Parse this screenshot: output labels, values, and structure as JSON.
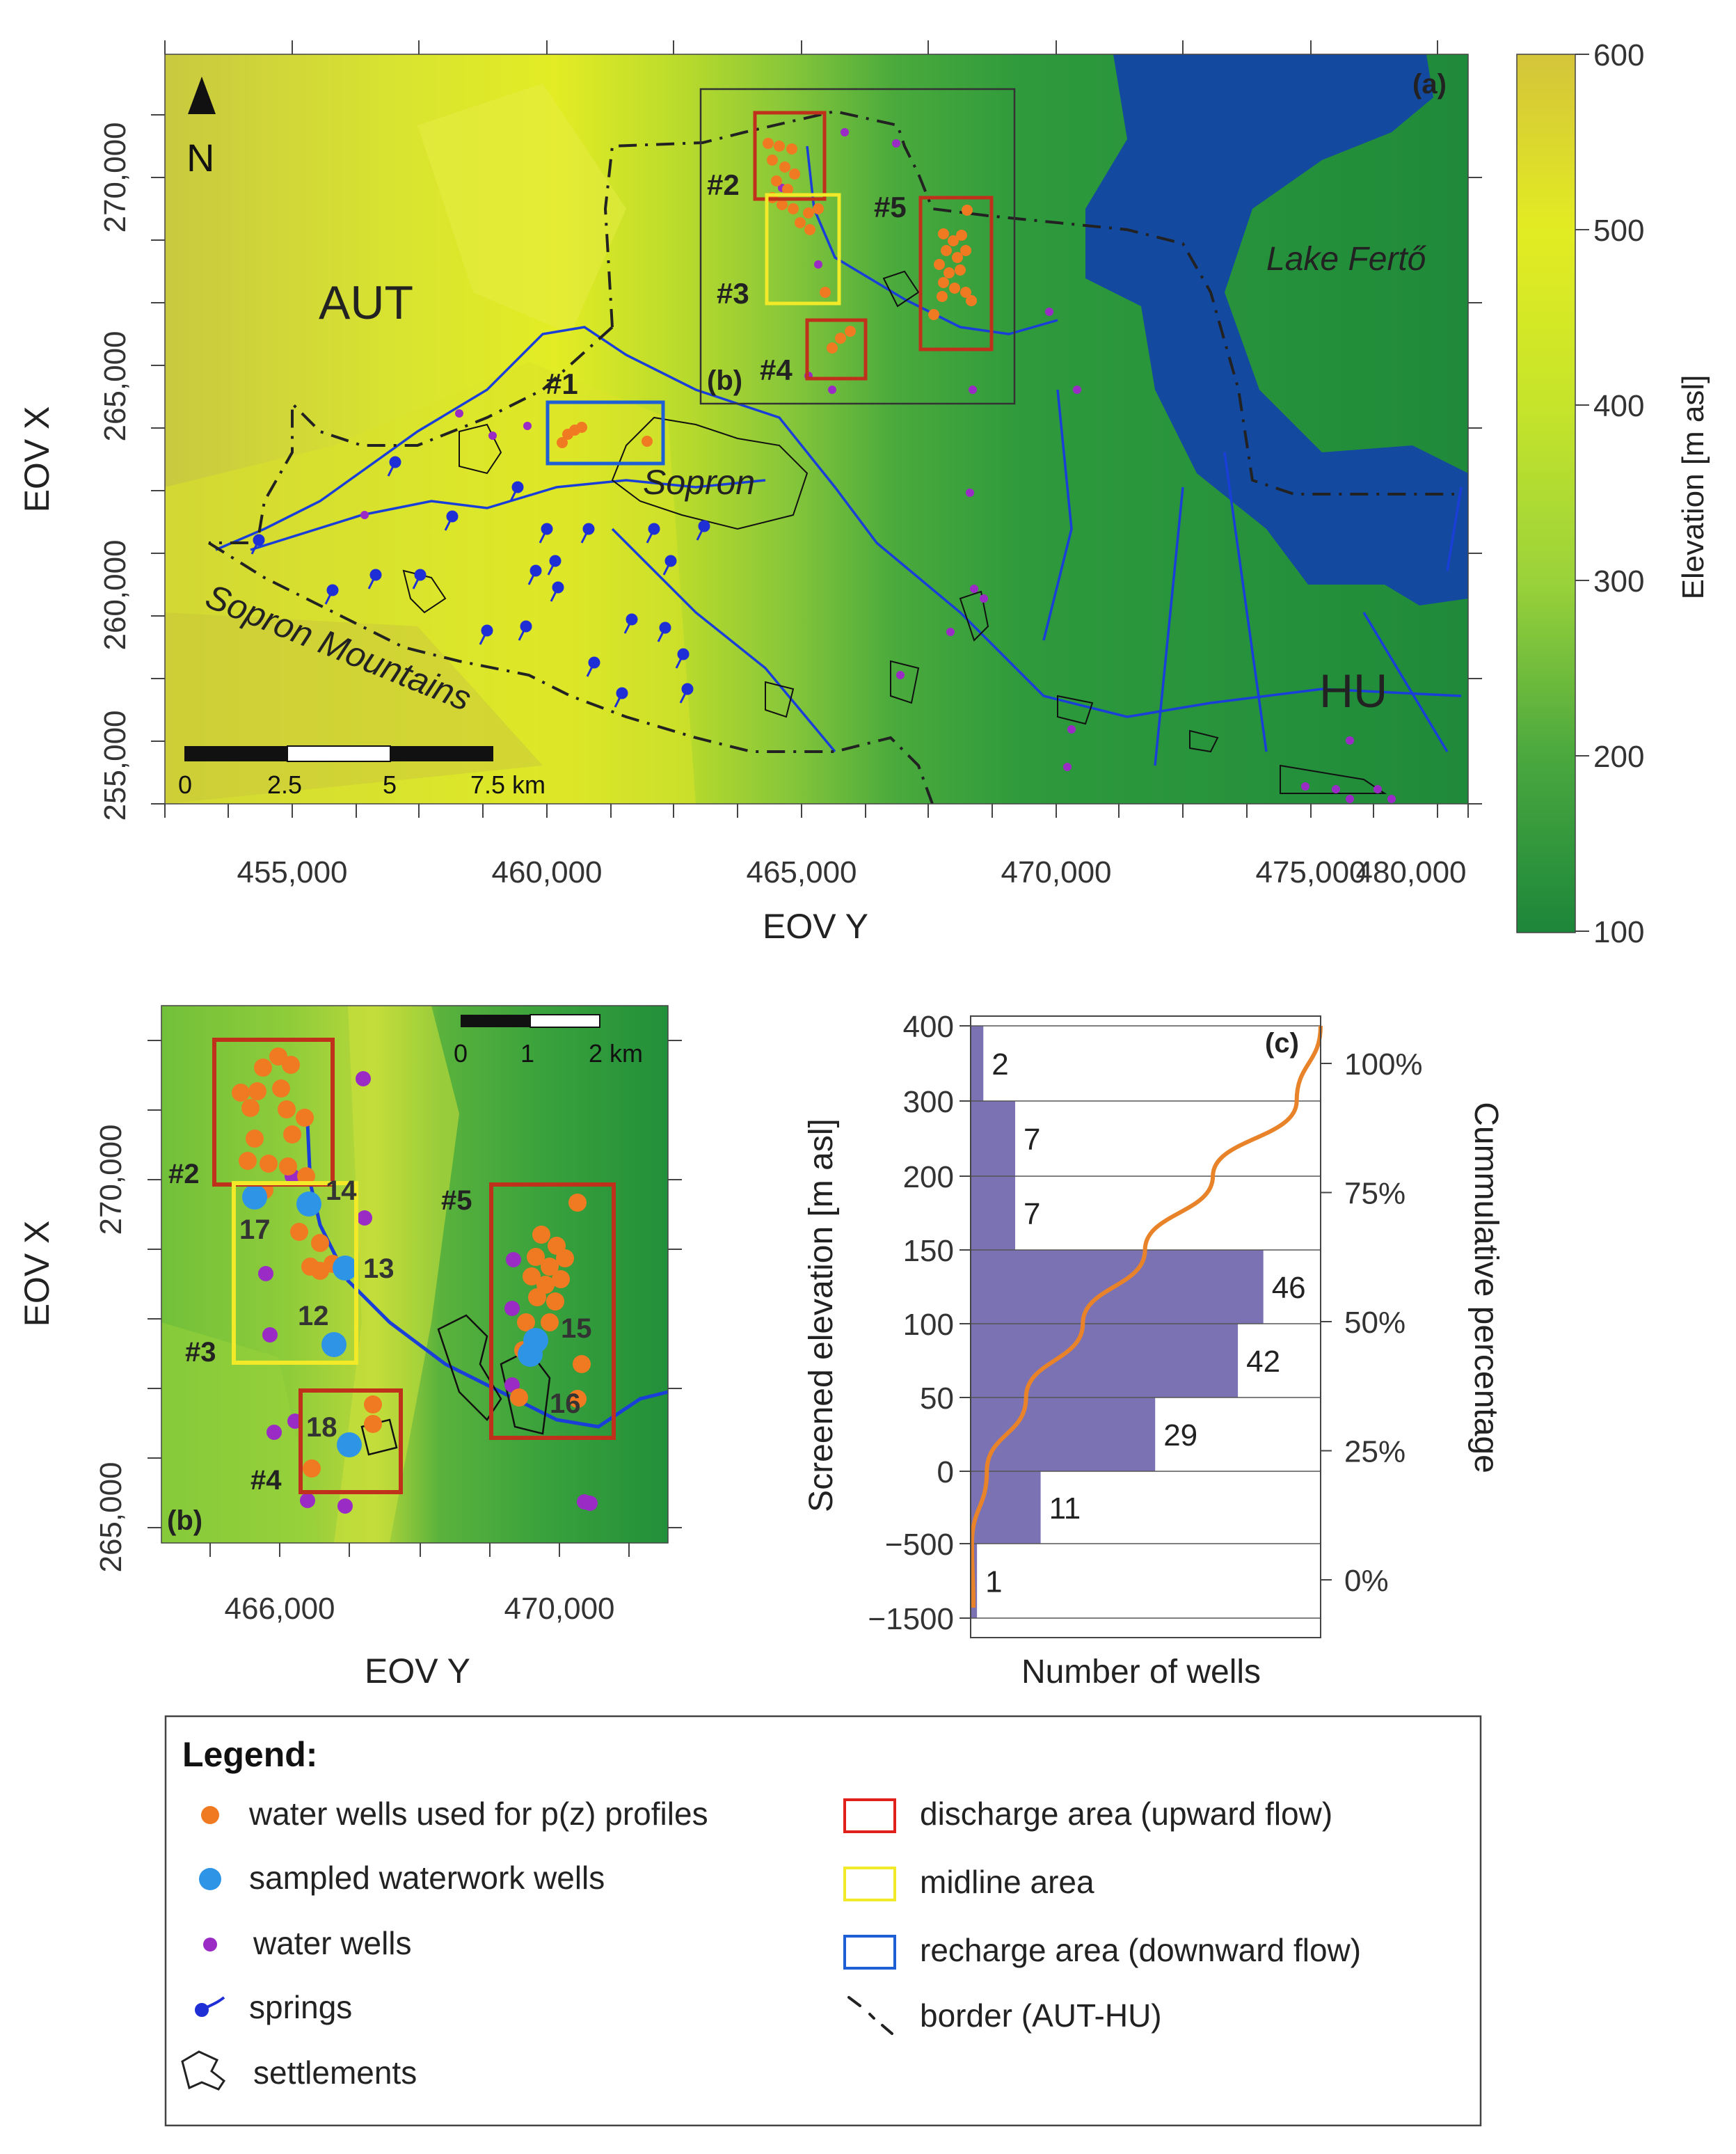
{
  "panel_a": {
    "tag": "(a)",
    "north": "N",
    "xlabel": "EOV Y",
    "ylabel": "EOV X",
    "xticks": [
      "455,000",
      "460,000",
      "465,000",
      "470,000",
      "475,000",
      "480,000"
    ],
    "yticks": [
      "270,000",
      "265,000",
      "260,000",
      "255,000"
    ],
    "scalebar": [
      "0",
      "2.5",
      "5",
      "7.5 km"
    ],
    "labels": {
      "aut": "AUT",
      "hu": "HU",
      "lake": "Lake Fertő",
      "sopron": "Sopron",
      "mountains": "Sopron Mountains",
      "b_box": "(b)",
      "area1": "#1",
      "area2": "#2",
      "area3": "#3",
      "area4": "#4",
      "area5": "#5"
    },
    "colorbar": {
      "title": "Elevation [m asl]",
      "ticks": [
        "600",
        "500",
        "400",
        "300",
        "200",
        "100"
      ],
      "color_low": "#1e8a3a",
      "color_mid": "#d9e820",
      "color_high": "#d8c43c"
    }
  },
  "panel_b": {
    "tag": "(b)",
    "xlabel": "EOV Y",
    "ylabel": "EOV X",
    "xticks": [
      "466,000",
      "470,000"
    ],
    "yticks": [
      "270,000",
      "265,000"
    ],
    "scalebar": [
      "0",
      "1",
      "2 km"
    ],
    "areas": [
      "#2",
      "#3",
      "#4",
      "#5"
    ],
    "sampled_wells": [
      "17",
      "14",
      "13",
      "12",
      "18",
      "15",
      "16"
    ]
  },
  "panel_c": {
    "tag": "(c)",
    "chart_data": {
      "type": "bar",
      "orientation": "horizontal",
      "ylabel": "Screened elevation [m asl]",
      "xlabel": "Number of wells",
      "y2label": "Cummulative percentage",
      "ytick_labels": [
        "400",
        "300",
        "200",
        "150",
        "100",
        "50",
        "0",
        "-500",
        "-1500"
      ],
      "y2tick_labels": [
        "100%",
        "75%",
        "50%",
        "25%",
        "0%"
      ],
      "bins": [
        "300–400",
        "200–300",
        "150–200",
        "100–150",
        "50–100",
        "0–50",
        "-500–0",
        "-1500–-500"
      ],
      "values": [
        2,
        7,
        7,
        46,
        42,
        29,
        11,
        1
      ],
      "bar_color": "#7b72b4",
      "line_color": "#e8832a"
    }
  },
  "legend": {
    "title": "Legend:",
    "items": [
      {
        "label": "water wells used for p(z) profiles",
        "color": "#f07a22"
      },
      {
        "label": "sampled waterwork wells",
        "color": "#2e94e6"
      },
      {
        "label": "water wells",
        "color": "#9a2bc4"
      },
      {
        "label": "springs",
        "color": "#1f2fd6"
      },
      {
        "label": "settlements",
        "color": "#222222"
      },
      {
        "label": "discharge area (upward flow)",
        "color": "#e0201a"
      },
      {
        "label": "midline area",
        "color": "#f2ea28"
      },
      {
        "label": "recharge area (downward flow)",
        "color": "#1f5fd6"
      },
      {
        "label": "border (AUT-HU)",
        "color": "#222222"
      }
    ]
  }
}
